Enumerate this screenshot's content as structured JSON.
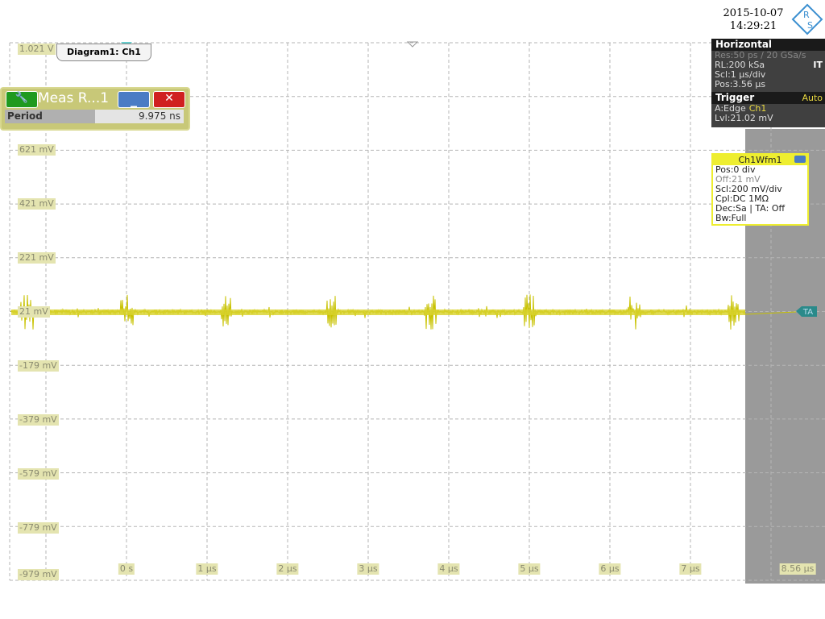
{
  "header": {
    "date": "2015-10-07",
    "time": "14:29:21",
    "logo": [
      "R",
      "S"
    ]
  },
  "diagram_tab": "Diagram1: Ch1",
  "meas": {
    "title": "Meas R...1",
    "label": "Period",
    "value": "9.975 ns"
  },
  "horizontal": {
    "title": "Horizontal",
    "rows": [
      [
        "Res:",
        "50 ps / 20 GSa/s"
      ],
      [
        "RL:",
        "200 kSa",
        "IT"
      ],
      [
        "Scl:",
        "1 µs/div"
      ],
      [
        "Pos:",
        "3.56 µs"
      ]
    ]
  },
  "trigger": {
    "title": "Trigger",
    "mode": "Auto",
    "rows": [
      [
        "A:",
        "Edge",
        "Ch1"
      ],
      [
        "Lvl:",
        "21.02 mV"
      ]
    ]
  },
  "channel": {
    "title": "Ch1Wfm1",
    "rows": [
      [
        "Pos:",
        "0 div"
      ],
      [
        "Off:",
        "21 mV"
      ],
      [
        "Scl:",
        "200 mV/div"
      ],
      [
        "Cpl:",
        "DC 1MΩ"
      ],
      [
        "Dec:",
        "Sa | TA: Off"
      ],
      [
        "Bw:",
        "Full"
      ]
    ]
  },
  "y_labels": [
    "1.021 V",
    "621 mV",
    "421 mV",
    "221 mV",
    "21 mV",
    "-179 mV",
    "-379 mV",
    "-579 mV",
    "-779 mV",
    "-979 mV"
  ],
  "x_labels": [
    "0 s",
    "1 µs",
    "2 µs",
    "3 µs",
    "4 µs",
    "5 µs",
    "6 µs",
    "7 µs",
    "8.56 µs"
  ],
  "trigger_marker": "TA"
}
